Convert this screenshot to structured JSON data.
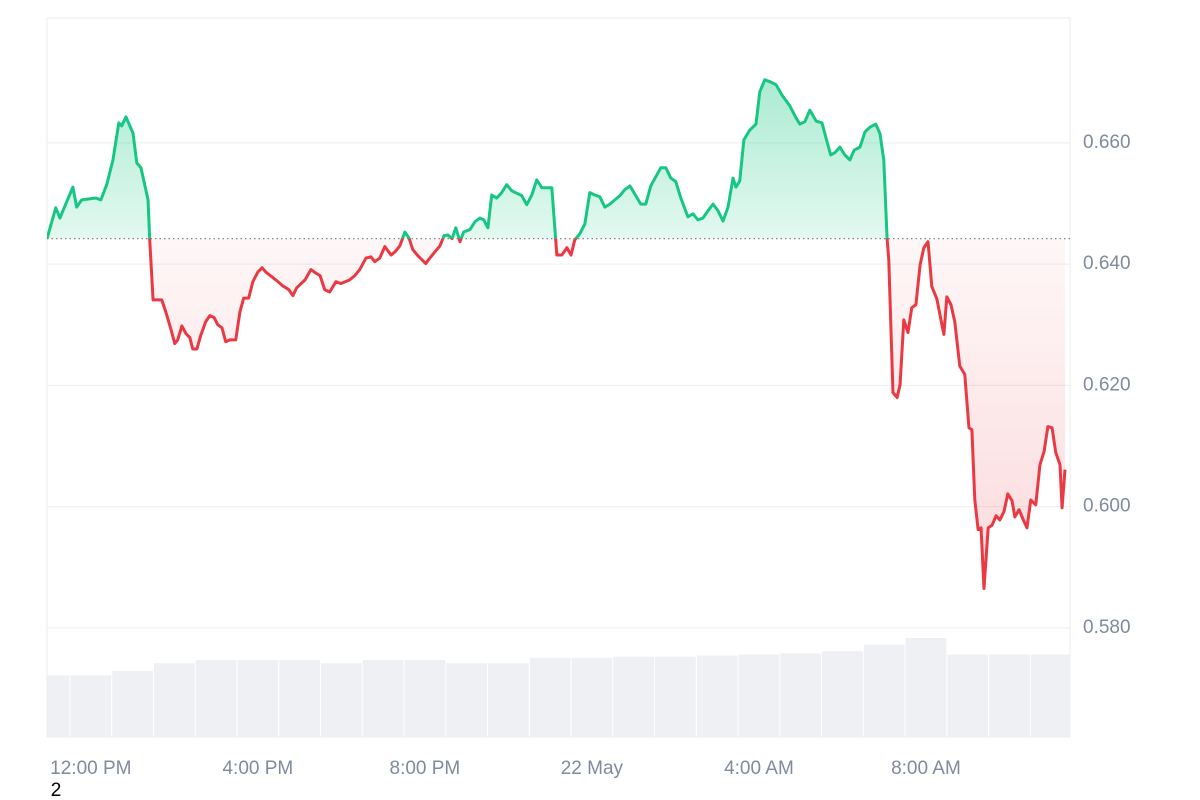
{
  "chart_data": {
    "type": "line",
    "baseline": 0.6442,
    "up_color": "#16c784",
    "down_color": "#ea3943",
    "grid": true,
    "xlim": [
      -1.05,
      23.45
    ],
    "ylim": [
      0.562,
      0.6806
    ],
    "yticks": [
      {
        "value": 0.58,
        "label": "0.580"
      },
      {
        "value": 0.6,
        "label": "0.600"
      },
      {
        "value": 0.62,
        "label": "0.620"
      },
      {
        "value": 0.64,
        "label": "0.640"
      },
      {
        "value": 0.66,
        "label": "0.660"
      }
    ],
    "xticks": [
      {
        "value": 0,
        "label": "12:00 PM"
      },
      {
        "value": 4,
        "label": "4:00 PM"
      },
      {
        "value": 8,
        "label": "8:00 PM"
      },
      {
        "value": 12,
        "label": "22 May"
      },
      {
        "value": 16,
        "label": "4:00 AM"
      },
      {
        "value": 20,
        "label": "8:00 AM"
      }
    ],
    "x": [
      -1.05,
      -0.84,
      -0.74,
      -0.62,
      -0.43,
      -0.34,
      -0.22,
      0.12,
      0.24,
      0.38,
      0.53,
      0.67,
      0.74,
      0.84,
      1.01,
      1.1,
      1.2,
      1.37,
      1.41,
      1.49,
      1.7,
      1.8,
      1.92,
      2.01,
      2.08,
      2.18,
      2.28,
      2.37,
      2.44,
      2.54,
      2.63,
      2.75,
      2.85,
      2.95,
      3.04,
      3.14,
      3.23,
      3.33,
      3.47,
      3.57,
      3.66,
      3.78,
      3.88,
      4.0,
      4.1,
      4.19,
      4.43,
      4.6,
      4.74,
      4.84,
      4.93,
      5.13,
      5.27,
      5.37,
      5.49,
      5.6,
      5.72,
      5.87,
      5.99,
      6.2,
      6.32,
      6.44,
      6.59,
      6.71,
      6.8,
      6.92,
      7.04,
      7.19,
      7.28,
      7.4,
      7.52,
      7.62,
      7.71,
      7.83,
      8.02,
      8.12,
      8.26,
      8.36,
      8.46,
      8.55,
      8.65,
      8.74,
      8.84,
      8.93,
      9.08,
      9.2,
      9.32,
      9.41,
      9.51,
      9.6,
      9.72,
      9.84,
      9.96,
      10.08,
      10.32,
      10.44,
      10.56,
      10.68,
      10.8,
      11.04,
      11.16,
      11.28,
      11.4,
      11.5,
      11.59,
      11.71,
      11.83,
      11.95,
      12.07,
      12.19,
      12.31,
      12.43,
      12.67,
      12.79,
      12.91,
      13.05,
      13.17,
      13.29,
      13.41,
      13.53,
      13.65,
      13.77,
      13.89,
      14.01,
      14.13,
      14.3,
      14.42,
      14.54,
      14.66,
      14.78,
      14.9,
      15.02,
      15.14,
      15.26,
      15.38,
      15.45,
      15.54,
      15.64,
      15.78,
      15.93,
      16.02,
      16.14,
      16.26,
      16.41,
      16.55,
      16.74,
      16.89,
      16.98,
      17.1,
      17.22,
      17.37,
      17.51,
      17.63,
      17.72,
      17.82,
      17.94,
      18.06,
      18.18,
      18.28,
      18.42,
      18.54,
      18.66,
      18.8,
      18.9,
      18.99,
      19.07,
      19.11,
      19.21,
      19.31,
      19.38,
      19.47,
      19.57,
      19.66,
      19.76,
      19.86,
      19.95,
      20.05,
      20.14,
      20.26,
      20.36,
      20.43,
      20.5,
      20.6,
      20.69,
      20.81,
      20.93,
      21.03,
      21.1,
      21.17,
      21.25,
      21.32,
      21.39,
      21.49,
      21.58,
      21.68,
      21.77,
      21.87,
      21.96,
      22.06,
      22.13,
      22.23,
      22.32,
      22.42,
      22.51,
      22.63,
      22.73,
      22.83,
      22.92,
      23.02,
      23.11,
      23.21,
      23.26,
      23.33
    ],
    "values": [
      0.6442,
      0.6493,
      0.6476,
      0.6496,
      0.6527,
      0.6494,
      0.6506,
      0.6509,
      0.6506,
      0.6531,
      0.6572,
      0.6633,
      0.6628,
      0.6643,
      0.6616,
      0.6567,
      0.6559,
      0.6506,
      0.644,
      0.6341,
      0.6341,
      0.632,
      0.6292,
      0.6269,
      0.6275,
      0.6298,
      0.6285,
      0.6279,
      0.626,
      0.626,
      0.6282,
      0.6305,
      0.6315,
      0.6312,
      0.63,
      0.6295,
      0.6272,
      0.6275,
      0.6275,
      0.6321,
      0.6344,
      0.6344,
      0.6371,
      0.6387,
      0.6394,
      0.6387,
      0.6374,
      0.6364,
      0.6358,
      0.6348,
      0.6361,
      0.6374,
      0.6391,
      0.6386,
      0.6381,
      0.6358,
      0.6354,
      0.6371,
      0.6368,
      0.6374,
      0.6381,
      0.6391,
      0.641,
      0.6412,
      0.6404,
      0.641,
      0.6429,
      0.6415,
      0.642,
      0.643,
      0.6453,
      0.6443,
      0.6424,
      0.6414,
      0.6401,
      0.641,
      0.6422,
      0.643,
      0.6447,
      0.6448,
      0.6442,
      0.646,
      0.6437,
      0.6453,
      0.6457,
      0.647,
      0.6476,
      0.6473,
      0.646,
      0.6514,
      0.6509,
      0.6518,
      0.6531,
      0.6521,
      0.6513,
      0.6498,
      0.6514,
      0.6539,
      0.6526,
      0.6526,
      0.6415,
      0.6415,
      0.6427,
      0.6415,
      0.644,
      0.645,
      0.6466,
      0.6518,
      0.6514,
      0.6511,
      0.6494,
      0.6499,
      0.6513,
      0.6523,
      0.6529,
      0.6513,
      0.6499,
      0.6499,
      0.6529,
      0.6544,
      0.6559,
      0.6559,
      0.6542,
      0.6536,
      0.6509,
      0.6478,
      0.6483,
      0.6473,
      0.6476,
      0.6488,
      0.6499,
      0.6488,
      0.6471,
      0.6494,
      0.6542,
      0.6527,
      0.6537,
      0.6605,
      0.6621,
      0.6631,
      0.6684,
      0.6704,
      0.6701,
      0.6696,
      0.6679,
      0.6661,
      0.6641,
      0.6631,
      0.6635,
      0.6654,
      0.6636,
      0.6633,
      0.6602,
      0.658,
      0.6584,
      0.6593,
      0.658,
      0.6572,
      0.6588,
      0.6593,
      0.6618,
      0.6626,
      0.6631,
      0.6615,
      0.6572,
      0.6442,
      0.6407,
      0.6188,
      0.618,
      0.6201,
      0.6308,
      0.6287,
      0.6328,
      0.6333,
      0.6399,
      0.6427,
      0.6437,
      0.6363,
      0.6343,
      0.6308,
      0.6284,
      0.6346,
      0.6333,
      0.6305,
      0.6232,
      0.6218,
      0.613,
      0.6127,
      0.6011,
      0.5962,
      0.5965,
      0.5865,
      0.5965,
      0.5969,
      0.5985,
      0.5978,
      0.5992,
      0.6021,
      0.601,
      0.5983,
      0.5995,
      0.598,
      0.5965,
      0.6011,
      0.6003,
      0.6069,
      0.6091,
      0.6132,
      0.613,
      0.6089,
      0.6069,
      0.5998,
      0.6061
    ],
    "volume": {
      "color": "#eef0f3",
      "x": [
        -1,
        0,
        1,
        2,
        3,
        4,
        5,
        6,
        7,
        8,
        9,
        10,
        11,
        12,
        13,
        14,
        15,
        16,
        17,
        18,
        19,
        20,
        21,
        22,
        23
      ],
      "values": [
        56,
        56,
        60,
        67,
        70,
        70,
        70,
        67,
        70,
        70,
        67,
        67,
        72,
        72,
        73,
        73,
        74,
        75,
        76,
        78,
        84,
        90,
        75,
        75,
        75
      ]
    },
    "footnote": "2"
  }
}
